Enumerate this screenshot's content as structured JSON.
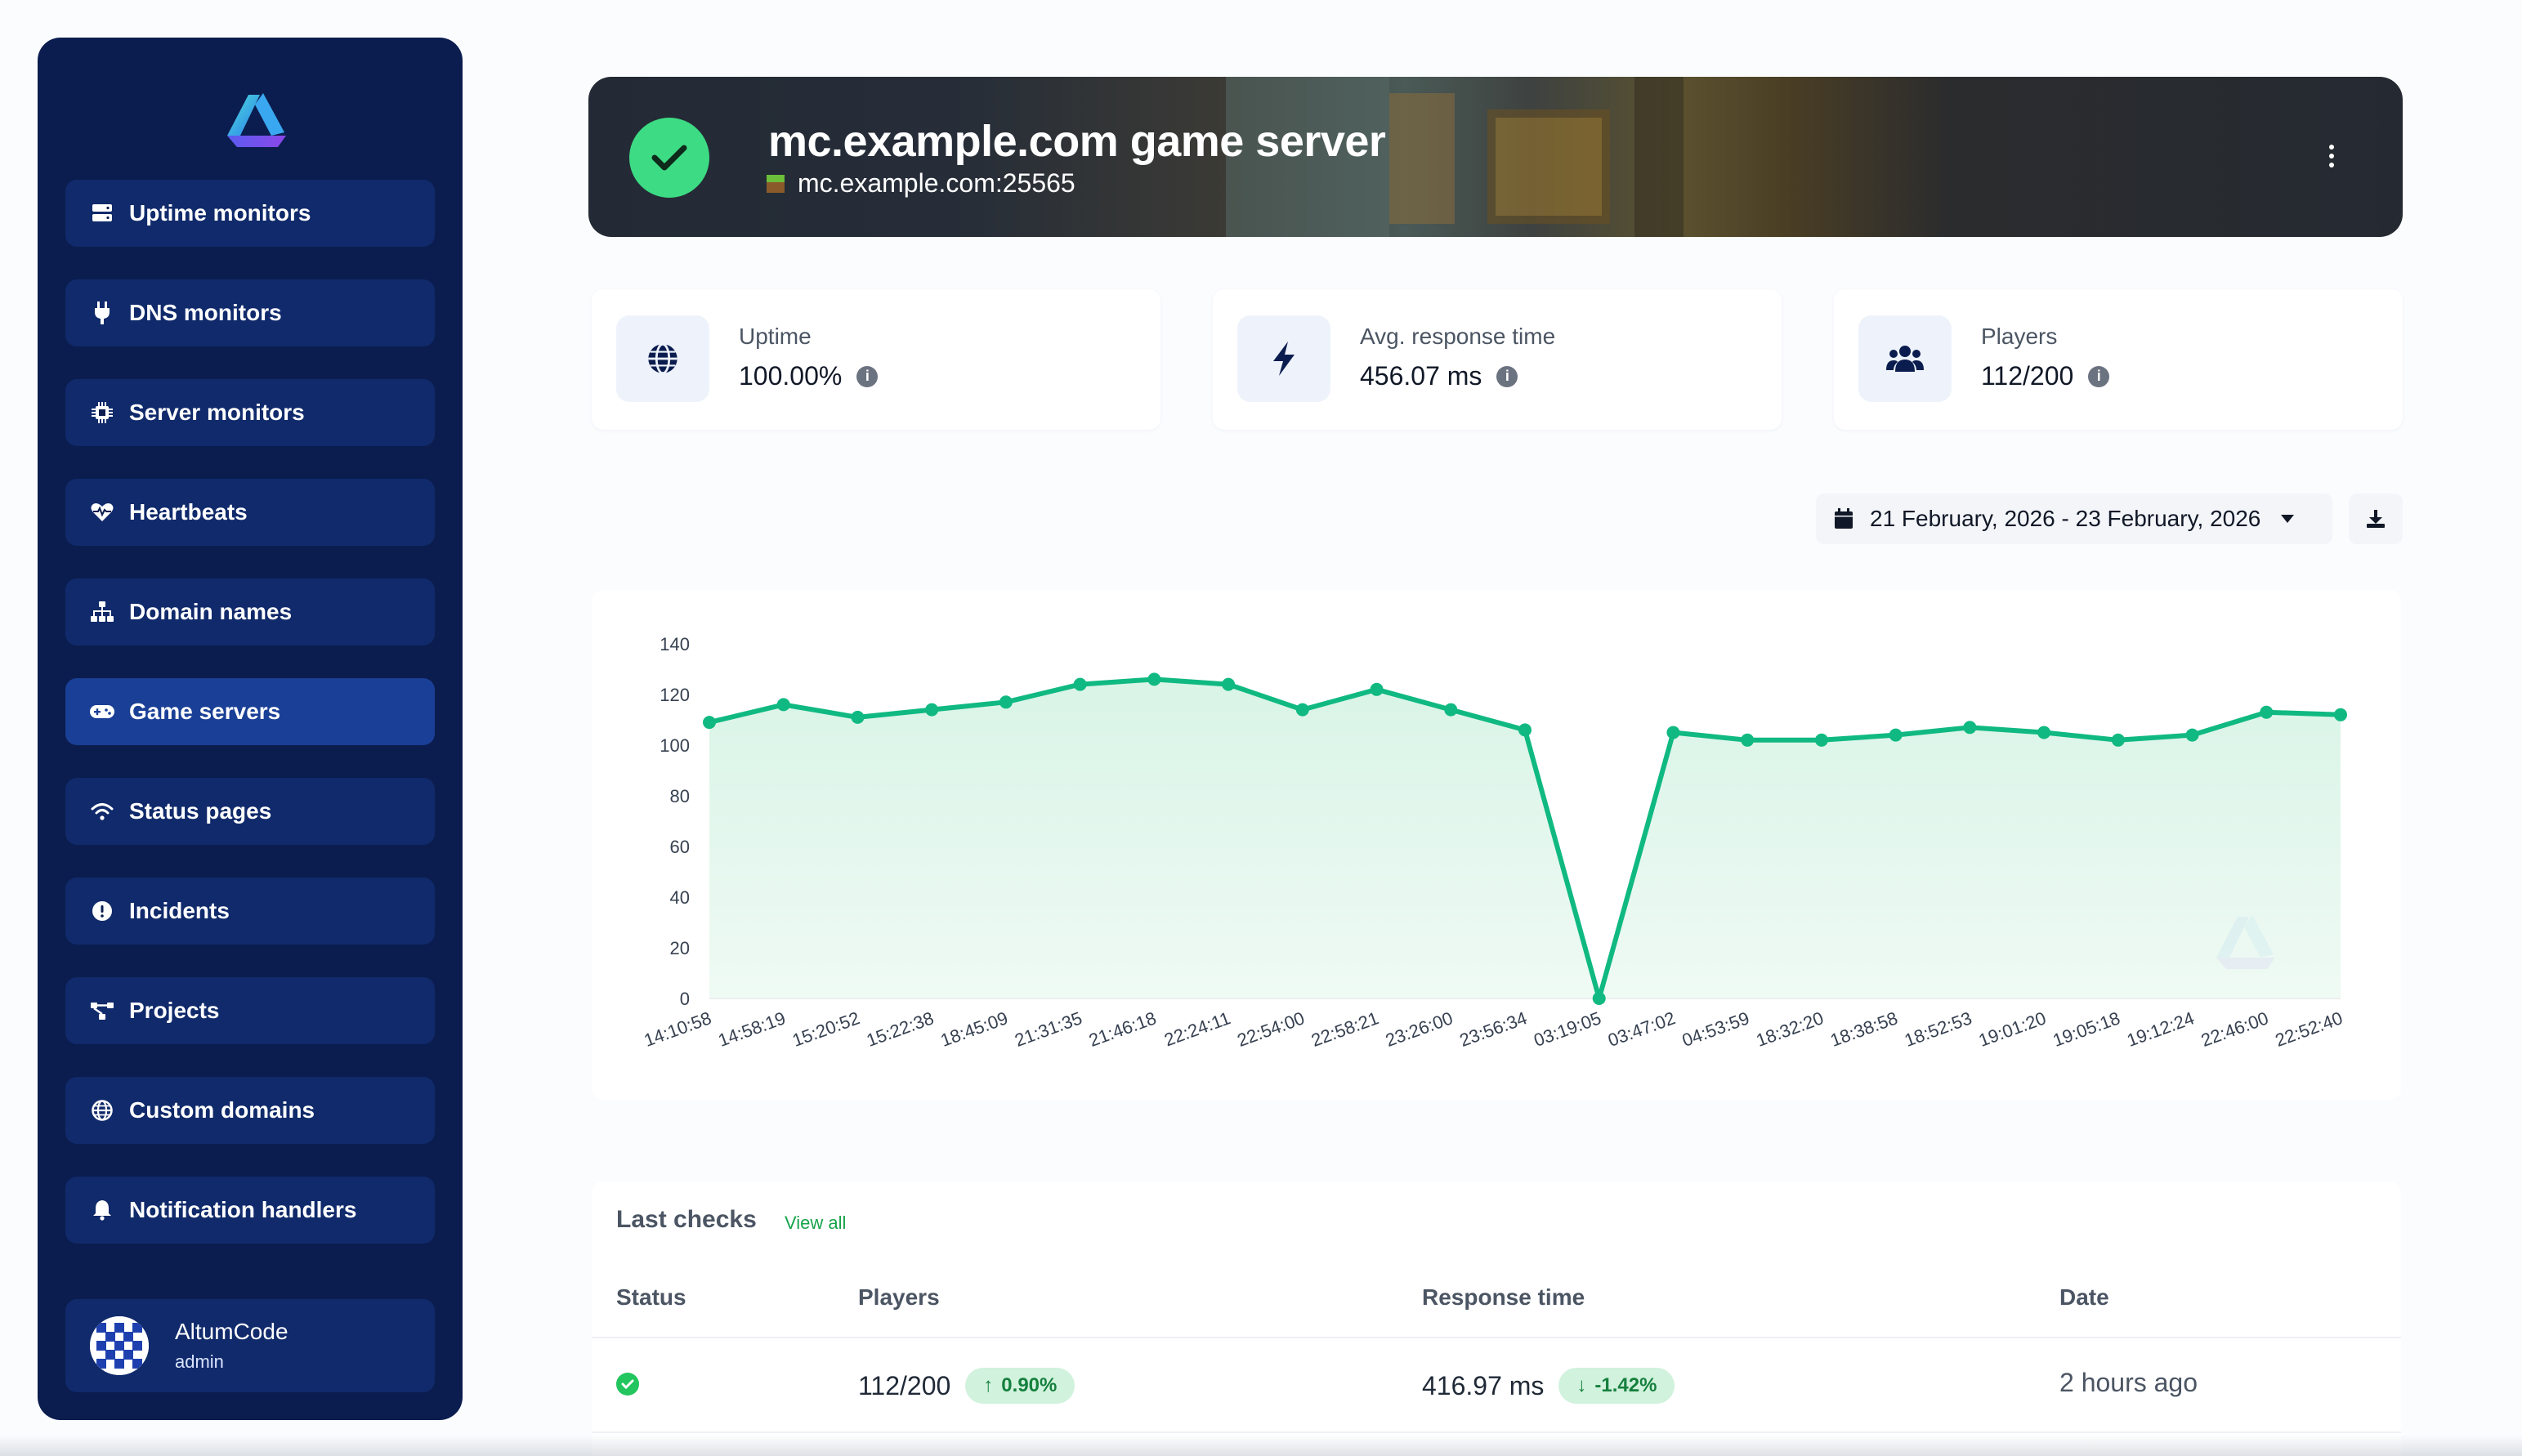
{
  "sidebar": {
    "items": [
      {
        "label": "Uptime monitors",
        "icon": "server-icon"
      },
      {
        "label": "DNS monitors",
        "icon": "plug-icon"
      },
      {
        "label": "Server monitors",
        "icon": "cpu-icon"
      },
      {
        "label": "Heartbeats",
        "icon": "heart-pulse-icon"
      },
      {
        "label": "Domain names",
        "icon": "sitemap-icon"
      },
      {
        "label": "Game servers",
        "icon": "gamepad-icon",
        "active": true
      },
      {
        "label": "Status pages",
        "icon": "wifi-icon"
      },
      {
        "label": "Incidents",
        "icon": "exclamation-circle-icon"
      },
      {
        "label": "Projects",
        "icon": "project-diagram-icon"
      },
      {
        "label": "Custom domains",
        "icon": "globe-icon"
      },
      {
        "label": "Notification handlers",
        "icon": "bell-icon"
      }
    ],
    "user": {
      "name": "AltumCode",
      "role": "admin"
    }
  },
  "header": {
    "title": "mc.example.com game server",
    "address": "mc.example.com:25565",
    "status": "online"
  },
  "stats": {
    "uptime": {
      "label": "Uptime",
      "value": "100.00%"
    },
    "response": {
      "label": "Avg. response time",
      "value": "456.07 ms"
    },
    "players": {
      "label": "Players",
      "value": "112/200"
    }
  },
  "filter": {
    "date_range": "21 February, 2026 - 23 February, 2026"
  },
  "colors": {
    "accent": "#10b981",
    "sidebar": "#0b1d4f",
    "active_item": "#1a3f96"
  },
  "chart_data": {
    "type": "area",
    "x": [
      "14:10:58",
      "14:58:19",
      "15:20:52",
      "15:22:38",
      "18:45:09",
      "21:31:35",
      "21:46:18",
      "22:24:11",
      "22:54:00",
      "22:58:21",
      "23:26:00",
      "23:56:34",
      "03:19:05",
      "03:47:02",
      "04:53:59",
      "18:32:20",
      "18:38:58",
      "18:52:53",
      "19:01:20",
      "19:05:18",
      "19:12:24",
      "22:46:00",
      "22:52:40"
    ],
    "values": [
      109,
      116,
      111,
      114,
      117,
      124,
      126,
      124,
      114,
      122,
      114,
      106,
      0,
      105,
      102,
      102,
      104,
      107,
      105,
      102,
      104,
      113,
      112
    ],
    "ylim": [
      0,
      140
    ],
    "yticks": [
      0,
      20,
      40,
      60,
      80,
      100,
      120,
      140
    ],
    "title": "",
    "xlabel": "",
    "ylabel": "",
    "grid": false
  },
  "last_checks": {
    "title": "Last checks",
    "view_all": "View all",
    "columns": [
      "Status",
      "Players",
      "Response time",
      "Date"
    ],
    "rows": [
      {
        "players": "112/200",
        "players_change": "0.90%",
        "response": "416.97 ms",
        "response_change": "-1.42%",
        "date": "2 hours ago"
      }
    ]
  }
}
